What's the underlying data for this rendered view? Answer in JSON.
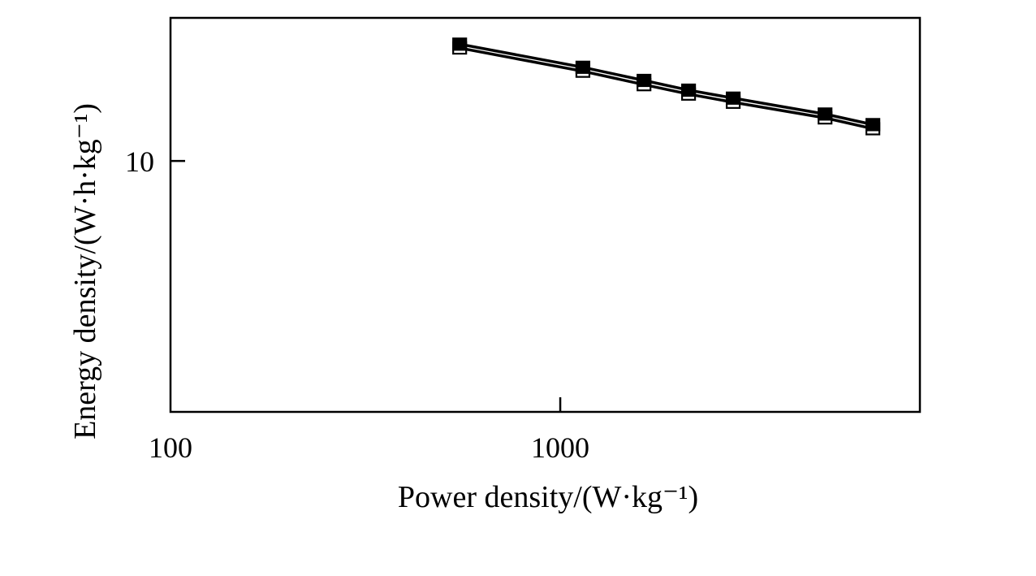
{
  "chart_data": {
    "type": "line",
    "title": "",
    "xlabel": "Power density/(W·kg⁻¹)",
    "ylabel": "Energy density/(W·h·kg⁻¹)",
    "xscale": "log",
    "yscale": "log",
    "xlim": [
      100,
      8370
    ],
    "ylim": [
      2.27,
      23.3
    ],
    "xticks": [
      {
        "value": 100,
        "label": "100"
      },
      {
        "value": 1000,
        "label": "1000"
      }
    ],
    "yticks": [
      {
        "value": 10,
        "label": "10"
      }
    ],
    "grid": false,
    "legend": "none",
    "x": [
      552,
      1143,
      1640,
      2134,
      2778,
      4779,
      6340
    ],
    "series": [
      {
        "name": "filled-square",
        "marker": "filled-square",
        "color": "#000000",
        "values": [
          19.95,
          17.4,
          16.1,
          15.2,
          14.5,
          13.2,
          12.4
        ]
      },
      {
        "name": "open-square",
        "marker": "open-square",
        "color": "#000000",
        "values": [
          19.5,
          17.0,
          15.7,
          14.85,
          14.15,
          12.9,
          12.1
        ]
      }
    ]
  }
}
